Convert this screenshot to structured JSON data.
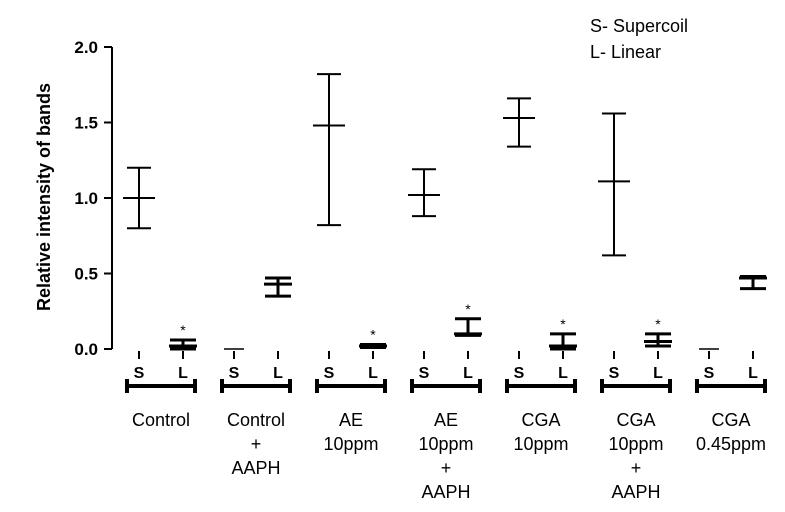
{
  "chart_data": {
    "type": "scatter",
    "title": "",
    "xlabel": "",
    "ylabel": "Relative intensity of bands",
    "ylim": [
      0,
      2.0
    ],
    "y_ticks": [
      "0.0",
      "0.5",
      "1.0",
      "1.5",
      "2.0"
    ],
    "grid": false,
    "legend_position": "top-right",
    "legend": [
      "S- Supercoil",
      "L- Linear"
    ],
    "groups": [
      {
        "label_lines": [
          "Control"
        ],
        "bars": [
          {
            "label": "S",
            "mean": 1.0,
            "upper": 1.2,
            "lower": 0.8,
            "star": false
          },
          {
            "label": "L",
            "mean": 0.02,
            "upper": 0.06,
            "lower": 0.0,
            "star": true
          }
        ]
      },
      {
        "label_lines": [
          "Control",
          "+",
          "AAPH"
        ],
        "bars": [
          {
            "label": "S",
            "mean": 0.0,
            "upper": 0.0,
            "lower": 0.0,
            "star": false
          },
          {
            "label": "L",
            "mean": 0.43,
            "upper": 0.47,
            "lower": 0.35,
            "star": false
          }
        ]
      },
      {
        "label_lines": [
          "AE",
          "10ppm"
        ],
        "bars": [
          {
            "label": "S",
            "mean": 1.48,
            "upper": 1.82,
            "lower": 0.82,
            "star": false
          },
          {
            "label": "L",
            "mean": 0.02,
            "upper": 0.03,
            "lower": 0.01,
            "star": true
          }
        ]
      },
      {
        "label_lines": [
          "AE",
          "10ppm",
          "+",
          "AAPH"
        ],
        "bars": [
          {
            "label": "S",
            "mean": 1.02,
            "upper": 1.19,
            "lower": 0.88,
            "star": false
          },
          {
            "label": "L",
            "mean": 0.1,
            "upper": 0.2,
            "lower": 0.09,
            "star": true
          }
        ]
      },
      {
        "label_lines": [
          "CGA",
          "10ppm"
        ],
        "bars": [
          {
            "label": "S",
            "mean": 1.53,
            "upper": 1.66,
            "lower": 1.34,
            "star": false
          },
          {
            "label": "L",
            "mean": 0.02,
            "upper": 0.1,
            "lower": 0.0,
            "star": true
          }
        ]
      },
      {
        "label_lines": [
          "CGA",
          "10ppm",
          "+",
          "AAPH"
        ],
        "bars": [
          {
            "label": "S",
            "mean": 1.11,
            "upper": 1.56,
            "lower": 0.62,
            "star": false
          },
          {
            "label": "L",
            "mean": 0.05,
            "upper": 0.1,
            "lower": 0.02,
            "star": true
          }
        ]
      },
      {
        "label_lines": [
          "CGA",
          "0.45ppm"
        ],
        "bars": [
          {
            "label": "S",
            "mean": 0.0,
            "upper": 0.0,
            "lower": 0.0,
            "star": false
          },
          {
            "label": "L",
            "mean": 0.47,
            "upper": 0.48,
            "lower": 0.4,
            "star": false
          }
        ]
      }
    ],
    "star_symbol": "*"
  }
}
